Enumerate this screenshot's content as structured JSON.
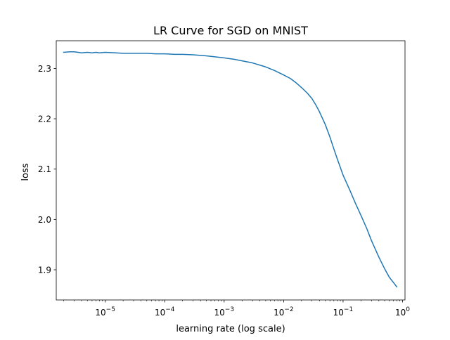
{
  "chart_data": {
    "type": "line",
    "title": "LR Curve for SGD on MNIST",
    "xlabel": "learning rate (log scale)",
    "ylabel": "loss",
    "x_scale": "log",
    "xlim": [
      1.5e-06,
      1.1
    ],
    "ylim": [
      1.84,
      2.355
    ],
    "grid": false,
    "x_ticks": [
      {
        "value": 1e-05,
        "base": "10",
        "exp": "−5"
      },
      {
        "value": 0.0001,
        "base": "10",
        "exp": "−4"
      },
      {
        "value": 0.001,
        "base": "10",
        "exp": "−3"
      },
      {
        "value": 0.01,
        "base": "10",
        "exp": "−2"
      },
      {
        "value": 0.1,
        "base": "10",
        "exp": "−1"
      },
      {
        "value": 1,
        "base": "10",
        "exp": "0"
      }
    ],
    "y_ticks": [
      {
        "value": 1.9,
        "label": "1.9"
      },
      {
        "value": 2.0,
        "label": "2.0"
      },
      {
        "value": 2.1,
        "label": "2.1"
      },
      {
        "value": 2.2,
        "label": "2.2"
      },
      {
        "value": 2.3,
        "label": "2.3"
      }
    ],
    "series": [
      {
        "color": "#1f77b4",
        "x": [
          2e-06,
          2.5e-06,
          3e-06,
          3.5e-06,
          4e-06,
          5e-06,
          6e-06,
          7e-06,
          8e-06,
          1e-05,
          1.5e-05,
          2e-05,
          3e-05,
          5e-05,
          7e-05,
          0.0001,
          0.00015,
          0.0002,
          0.0003,
          0.0005,
          0.0007,
          0.001,
          0.0015,
          0.002,
          0.003,
          0.005,
          0.007,
          0.01,
          0.013,
          0.016,
          0.02,
          0.025,
          0.03,
          0.035,
          0.04,
          0.05,
          0.06,
          0.07,
          0.08,
          0.1,
          0.13,
          0.16,
          0.2,
          0.25,
          0.3,
          0.4,
          0.5,
          0.6,
          0.7,
          0.8
        ],
        "y": [
          2.332,
          2.333,
          2.333,
          2.332,
          2.331,
          2.332,
          2.331,
          2.332,
          2.331,
          2.332,
          2.331,
          2.33,
          2.33,
          2.33,
          2.329,
          2.329,
          2.328,
          2.328,
          2.327,
          2.325,
          2.323,
          2.321,
          2.318,
          2.315,
          2.311,
          2.303,
          2.296,
          2.287,
          2.28,
          2.272,
          2.262,
          2.251,
          2.24,
          2.227,
          2.214,
          2.189,
          2.164,
          2.14,
          2.12,
          2.088,
          2.058,
          2.033,
          2.008,
          1.982,
          1.958,
          1.925,
          1.902,
          1.885,
          1.875,
          1.866
        ]
      }
    ]
  }
}
